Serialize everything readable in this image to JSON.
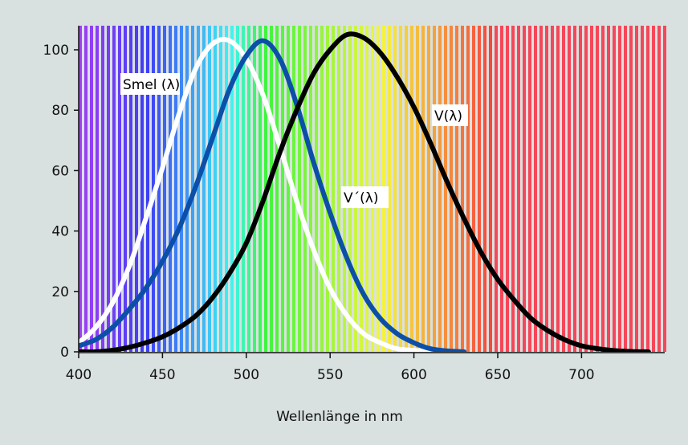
{
  "chart_data": {
    "type": "line",
    "title": "",
    "xlabel": "Wellenlänge in nm",
    "ylabel": "",
    "xlim": [
      400,
      750
    ],
    "ylim": [
      0,
      107
    ],
    "xticks": [
      400,
      450,
      500,
      550,
      600,
      650,
      700
    ],
    "yticks": [
      0,
      20,
      40,
      60,
      80,
      100
    ],
    "background": "visible spectrum stripes (violet at 400 nm to red at 750 nm)",
    "grid": false,
    "series": [
      {
        "name": "Smel (λ)",
        "color": "#ffffff",
        "x": [
          400,
          410,
          420,
          430,
          440,
          450,
          460,
          470,
          480,
          490,
          500,
          510,
          520,
          530,
          540,
          550,
          560,
          570,
          580,
          590,
          600,
          610,
          620
        ],
        "y": [
          3,
          8,
          16,
          28,
          44,
          61,
          79,
          94,
          102,
          103,
          97,
          85,
          68,
          50,
          34,
          21,
          12,
          6,
          3,
          1,
          0.5,
          0,
          0
        ]
      },
      {
        "name": "V´(λ)",
        "color": "#0c4fa8",
        "x": [
          400,
          410,
          420,
          430,
          440,
          450,
          460,
          470,
          480,
          490,
          500,
          510,
          520,
          530,
          540,
          550,
          560,
          570,
          580,
          590,
          600,
          610,
          620,
          630
        ],
        "y": [
          2,
          4,
          8,
          14,
          21,
          30,
          41,
          55,
          71,
          87,
          98,
          103,
          97,
          82,
          63,
          46,
          31,
          19,
          11,
          6,
          3,
          1,
          0.3,
          0
        ]
      },
      {
        "name": "V(λ)",
        "color": "#000000",
        "x": [
          400,
          410,
          420,
          430,
          440,
          450,
          460,
          470,
          480,
          490,
          500,
          510,
          520,
          530,
          540,
          550,
          560,
          570,
          580,
          590,
          600,
          610,
          620,
          630,
          640,
          650,
          660,
          670,
          680,
          690,
          700,
          710,
          720,
          730,
          740
        ],
        "y": [
          0,
          0,
          0.5,
          1.5,
          3,
          5,
          8,
          12,
          18,
          26,
          36,
          50,
          66,
          80,
          92,
          100,
          105,
          104,
          99,
          91,
          81,
          69,
          56,
          44,
          33,
          24,
          17,
          11,
          7,
          4,
          2,
          1,
          0.4,
          0.1,
          0
        ]
      }
    ],
    "labels": {
      "smel": "Smel (λ)",
      "vprime": "V´(λ)",
      "v": "V(λ)"
    }
  }
}
